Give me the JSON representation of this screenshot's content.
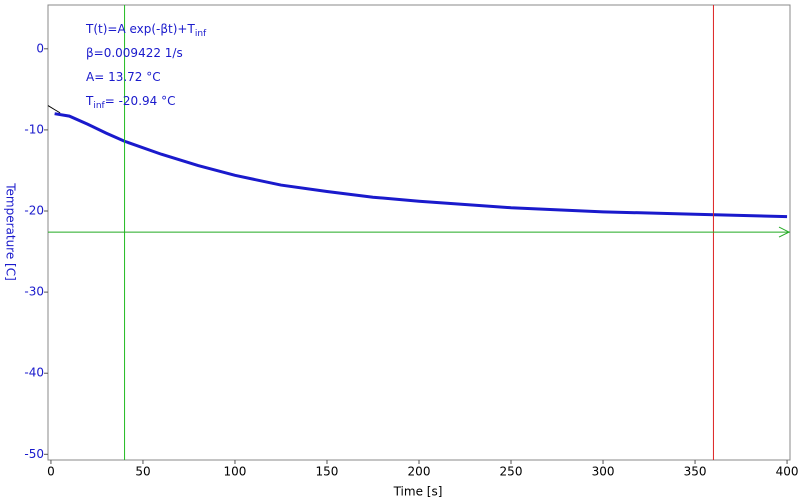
{
  "chart_data": {
    "type": "line",
    "xlabel": "Time [s]",
    "ylabel": "Temperature [C]",
    "xlim": [
      -1.6,
      401.6
    ],
    "ylim": [
      -50.7,
      5.4
    ],
    "xticks": [
      0,
      50,
      100,
      150,
      200,
      250,
      300,
      350,
      400
    ],
    "yticks": [
      0,
      -10,
      -20,
      -30,
      -40,
      -50
    ],
    "series": [
      {
        "color": "#1a1acc",
        "x": [
          2,
          10,
          20,
          30,
          40,
          60,
          80,
          100,
          125,
          150,
          175,
          200,
          250,
          300,
          350,
          400
        ],
        "values": [
          -8.0,
          -8.3,
          -9.3,
          -10.4,
          -11.4,
          -13.0,
          -14.4,
          -15.6,
          -16.8,
          -17.6,
          -18.3,
          -18.8,
          -19.6,
          -20.1,
          -20.4,
          -20.7
        ]
      },
      {
        "color": "#000000",
        "x": [
          -1.6,
          2,
          5
        ],
        "values": [
          -7.0,
          -7.5,
          -7.9
        ]
      }
    ],
    "vertical_cursors": [
      {
        "x": 40,
        "color": "#22bb22"
      },
      {
        "x": 360,
        "color": "#dd2222"
      }
    ],
    "horizontal_cursor": {
      "y": -22.6,
      "color": "#22aa22"
    },
    "annotations": [
      {
        "text": "T(t)=A exp(-βt)+T",
        "sub": "inf"
      },
      {
        "text": "β=0.009422 1/s"
      },
      {
        "text": "A= 13.72 °C"
      },
      {
        "text": "T",
        "sub": "inf",
        "after": "= -20.94 °C"
      }
    ]
  }
}
